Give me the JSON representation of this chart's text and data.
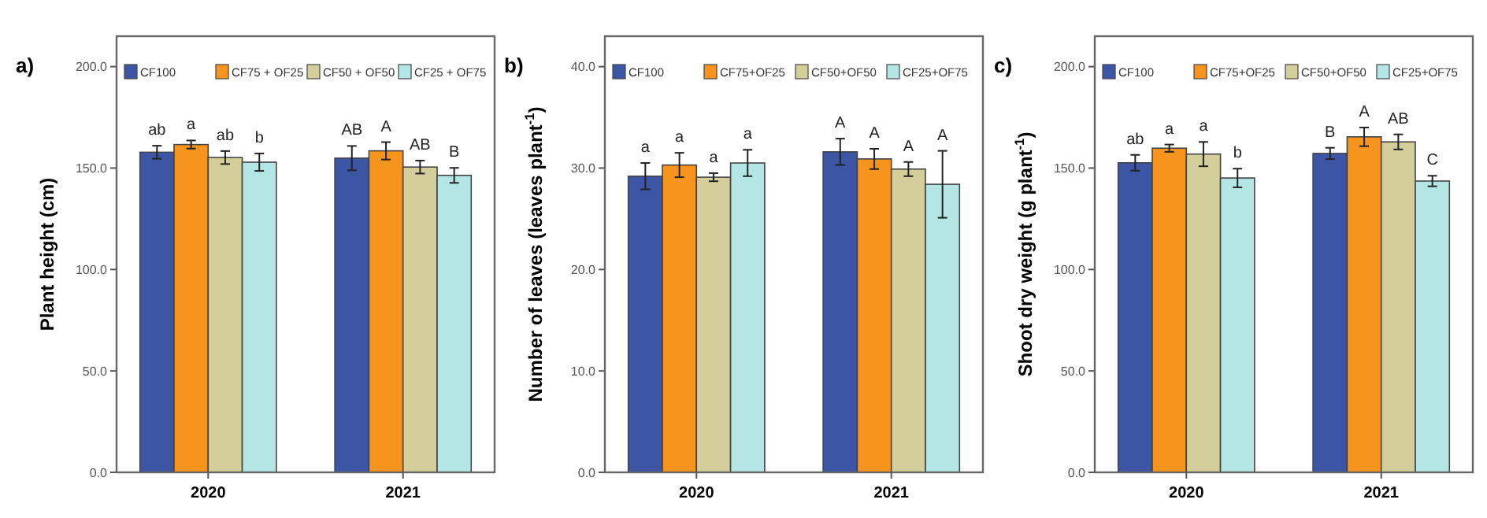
{
  "chart_data": [
    {
      "type": "bar",
      "title": "a)",
      "ylabel": "Plant height (cm)",
      "categories": [
        "2020",
        "2021"
      ],
      "ylim": [
        0,
        215
      ],
      "yticks": [
        {
          "value": 0,
          "label": "0.0"
        },
        {
          "value": 50,
          "label": "50.0"
        },
        {
          "value": 100,
          "label": "100.0"
        },
        {
          "value": 150,
          "label": "150.0"
        },
        {
          "value": 200,
          "label": "200.0"
        }
      ],
      "legend": "top",
      "series": [
        {
          "name": "CF100",
          "color": "#3c55a5",
          "values": [
            157.8,
            154.9
          ],
          "errors": [
            3.2,
            6
          ],
          "value_labels": [
            "ab",
            "AB"
          ]
        },
        {
          "name": "CF75 + OF25",
          "color": "#f7941d",
          "values": [
            161.6,
            158.5
          ],
          "errors": [
            2,
            4.3
          ],
          "value_labels": [
            "a",
            "A"
          ]
        },
        {
          "name": "CF50 + OF50",
          "color": "#d4cf9a",
          "values": [
            155.2,
            150.5
          ],
          "errors": [
            3.2,
            3.2
          ],
          "value_labels": [
            "ab",
            "AB"
          ]
        },
        {
          "name": "CF25 + OF75",
          "color": "#b4e6e6",
          "values": [
            152.9,
            146.4
          ],
          "errors": [
            4.3,
            3.7
          ],
          "value_labels": [
            "b",
            "B"
          ]
        }
      ]
    },
    {
      "type": "bar",
      "title": "b)",
      "ylabel": "Number of leaves (leaves plant$^{-1}$)",
      "categories": [
        "2020",
        "2021"
      ],
      "ylim": [
        0,
        43
      ],
      "yticks": [
        {
          "value": 0,
          "label": "0.0"
        },
        {
          "value": 10,
          "label": "10.0"
        },
        {
          "value": 20,
          "label": "20.0"
        },
        {
          "value": 30,
          "label": "30.0"
        },
        {
          "value": 40,
          "label": "40.0"
        }
      ],
      "legend": "top",
      "series": [
        {
          "name": "CF100",
          "color": "#3c55a5",
          "values": [
            29.2,
            31.6
          ],
          "errors": [
            1.3,
            1.3
          ],
          "value_labels": [
            "a",
            "A"
          ]
        },
        {
          "name": "CF75+OF25",
          "color": "#f7941d",
          "values": [
            30.3,
            30.9
          ],
          "errors": [
            1.2,
            1.0
          ],
          "value_labels": [
            "a",
            "A"
          ]
        },
        {
          "name": "CF50+OF50",
          "color": "#d4cf9a",
          "values": [
            29.1,
            29.9
          ],
          "errors": [
            0.4,
            0.7
          ],
          "value_labels": [
            "a",
            "A"
          ]
        },
        {
          "name": "CF25+OF75",
          "color": "#b4e6e6",
          "values": [
            30.5,
            28.4
          ],
          "errors": [
            1.3,
            3.3
          ],
          "value_labels": [
            "a",
            "A"
          ]
        }
      ]
    },
    {
      "type": "bar",
      "title": "c)",
      "ylabel": "Shoot dry weight (g plant$^{-1}$)",
      "categories": [
        "2020",
        "2021"
      ],
      "ylim": [
        0,
        215
      ],
      "yticks": [
        {
          "value": 0,
          "label": "0.0"
        },
        {
          "value": 50,
          "label": "50.0"
        },
        {
          "value": 100,
          "label": "100.0"
        },
        {
          "value": 150,
          "label": "150.0"
        },
        {
          "value": 200,
          "label": "200.0"
        }
      ],
      "legend": "top",
      "series": [
        {
          "name": "CF100",
          "color": "#3c55a5",
          "values": [
            152.6,
            157.2
          ],
          "errors": [
            3.9,
            2.8
          ],
          "value_labels": [
            "ab",
            "B"
          ]
        },
        {
          "name": "CF75+OF25",
          "color": "#f7941d",
          "values": [
            159.8,
            165.4
          ],
          "errors": [
            1.8,
            4.6
          ],
          "value_labels": [
            "a",
            "A"
          ]
        },
        {
          "name": "CF50+OF50",
          "color": "#d4cf9a",
          "values": [
            156.9,
            162.9
          ],
          "errors": [
            6,
            3.7
          ],
          "value_labels": [
            "a",
            "AB"
          ]
        },
        {
          "name": "CF25+OF75",
          "color": "#b4e6e6",
          "values": [
            145.1,
            143.6
          ],
          "errors": [
            4.6,
            2.6
          ],
          "value_labels": [
            "b",
            "C"
          ]
        }
      ]
    }
  ]
}
